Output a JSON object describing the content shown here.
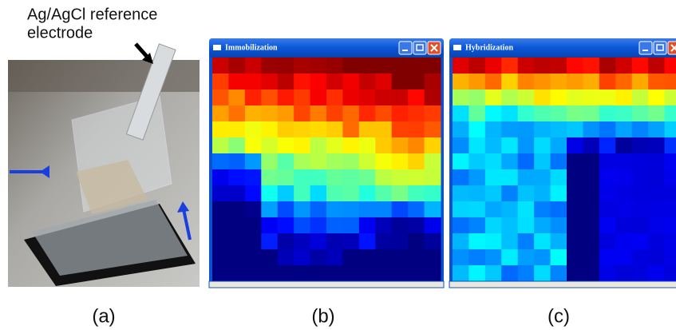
{
  "annotation": {
    "lines": [
      "Ag/AgCl reference",
      "electrode"
    ]
  },
  "windows": [
    {
      "title": "Immobilization"
    },
    {
      "title": "Hybridization"
    }
  ],
  "panel_labels": [
    "(a)",
    "(b)",
    "(c)"
  ]
}
